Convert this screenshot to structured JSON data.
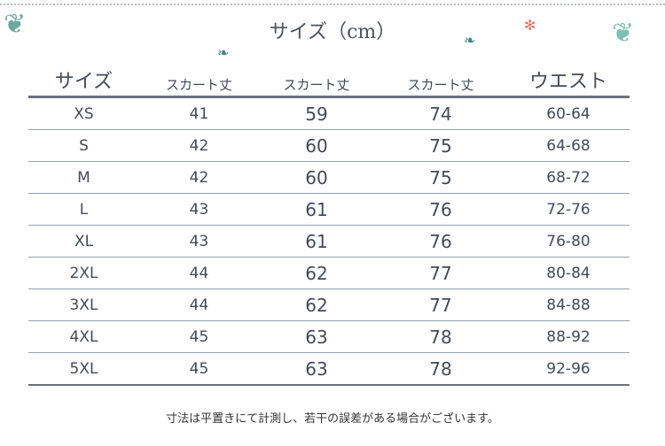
{
  "title": "サイズ（cm）",
  "table": {
    "headers": [
      "サイズ",
      "スカート丈",
      "スカート丈",
      "スカート丈",
      "ウエスト"
    ],
    "rows": [
      [
        "XS",
        "41",
        "59",
        "74",
        "60-64"
      ],
      [
        "S",
        "42",
        "60",
        "75",
        "64-68"
      ],
      [
        "M",
        "42",
        "60",
        "75",
        "68-72"
      ],
      [
        "L",
        "43",
        "61",
        "76",
        "72-76"
      ],
      [
        "XL",
        "43",
        "61",
        "76",
        "76-80"
      ],
      [
        "2XL",
        "44",
        "62",
        "77",
        "80-84"
      ],
      [
        "3XL",
        "44",
        "62",
        "77",
        "84-88"
      ],
      [
        "4XL",
        "45",
        "63",
        "78",
        "88-92"
      ],
      [
        "5XL",
        "45",
        "63",
        "78",
        "92-96"
      ]
    ]
  },
  "note": "寸法は平置きにて計測し、若干の誤差がある場合がございます。",
  "decor": {
    "leaf_color": "#3f8a84",
    "flower_color": "#f06a5c"
  }
}
